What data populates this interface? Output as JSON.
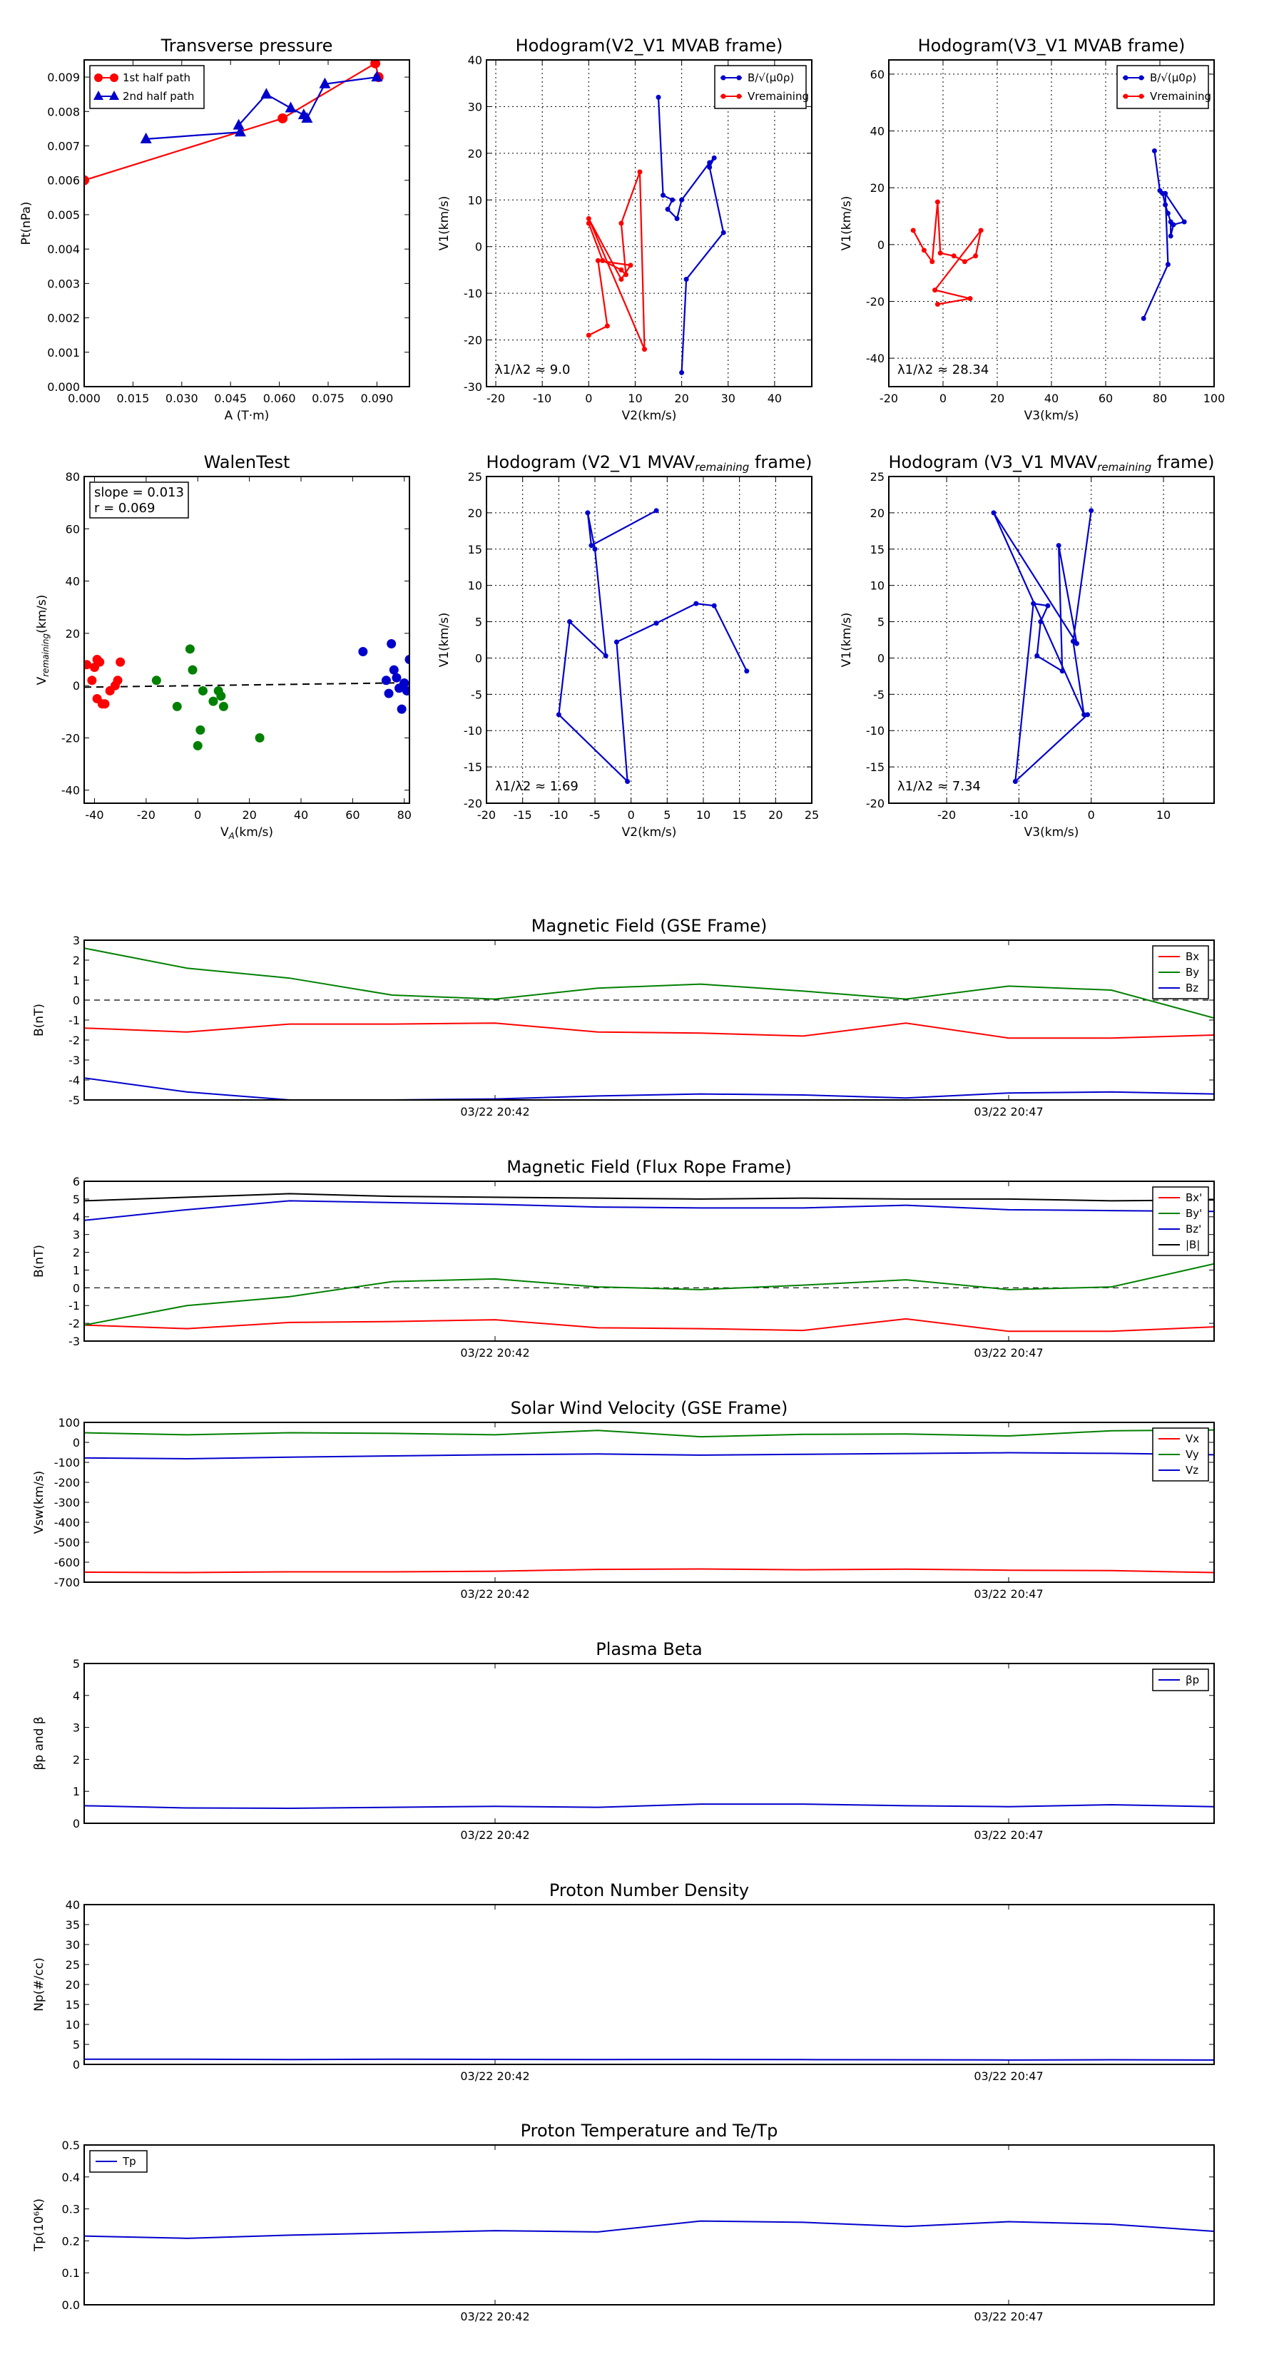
{
  "chart_data": [
    {
      "id": "tp",
      "type": "scatter",
      "title": "Transverse pressure",
      "xlabel": "A (T·m)",
      "ylabel": "Pt(nPa)",
      "xlim": [
        0,
        0.1
      ],
      "ylim": [
        0,
        0.0095
      ],
      "xticks": [
        0,
        0.015,
        0.03,
        0.045,
        0.06,
        0.075,
        0.09
      ],
      "xtick_labels": [
        "0.000",
        "0.015",
        "0.030",
        "0.045",
        "0.060",
        "0.075",
        "0.090"
      ],
      "yticks": [
        0,
        0.001,
        0.002,
        0.003,
        0.004,
        0.005,
        0.006,
        0.007,
        0.008,
        0.009
      ],
      "ytick_labels": [
        "0.000",
        "0.001",
        "0.002",
        "0.003",
        "0.004",
        "0.005",
        "0.006",
        "0.007",
        "0.008",
        "0.009"
      ],
      "grid": false,
      "legend_loc": "upper-left",
      "series": [
        {
          "name": "1st half path",
          "color": "#ff0000",
          "marker": "circle",
          "x": [
            0.0,
            0.061,
            0.0895,
            0.0905
          ],
          "y": [
            0.006,
            0.0078,
            0.0094,
            0.009
          ]
        },
        {
          "name": "2nd half path",
          "color": "#0000cc",
          "marker": "triangle",
          "x": [
            0.019,
            0.048,
            0.0475,
            0.056,
            0.0635,
            0.0675,
            0.0685,
            0.074,
            0.09
          ],
          "y": [
            0.0072,
            0.0074,
            0.0076,
            0.0085,
            0.0081,
            0.0079,
            0.0078,
            0.0088,
            0.009
          ]
        }
      ]
    },
    {
      "id": "h1",
      "type": "line",
      "title": "Hodogram(V2_V1 MVAB frame)",
      "xlabel": "V2(km/s)",
      "ylabel": "V1(km/s)",
      "xlim": [
        -22,
        48
      ],
      "ylim": [
        -30,
        40
      ],
      "xticks": [
        -20,
        -10,
        0,
        10,
        20,
        30,
        40
      ],
      "yticks": [
        -30,
        -20,
        -10,
        0,
        10,
        20,
        30,
        40
      ],
      "grid": true,
      "legend_loc": "upper-right",
      "annotation": "λ1/λ2 ≈ 9.0",
      "series": [
        {
          "name": "B/√(μ0ρ)",
          "color": "#0000cc",
          "x": [
            15,
            16,
            18,
            17,
            19,
            20,
            26,
            27,
            26,
            29,
            21,
            20
          ],
          "y": [
            32,
            11,
            10,
            8,
            6,
            10,
            18,
            19,
            17,
            3,
            -7,
            -27
          ]
        },
        {
          "name": "Vremaining",
          "color": "#ff0000",
          "x": [
            0,
            3,
            7,
            8,
            7,
            11,
            12,
            0,
            7,
            9,
            2,
            4,
            0
          ],
          "y": [
            5,
            -3,
            -5,
            -6,
            5,
            16,
            -22,
            6,
            -7,
            -4,
            -3,
            -17,
            -19
          ]
        }
      ]
    },
    {
      "id": "h2",
      "type": "line",
      "title": "Hodogram(V3_V1 MVAB frame)",
      "xlabel": "V3(km/s)",
      "ylabel": "V1(km/s)",
      "xlim": [
        -20,
        100
      ],
      "ylim": [
        -50,
        65
      ],
      "xticks": [
        -20,
        0,
        20,
        40,
        60,
        80,
        100
      ],
      "yticks": [
        -40,
        -20,
        0,
        20,
        40,
        60
      ],
      "grid": true,
      "legend_loc": "upper-right",
      "annotation": "λ1/λ2 ≈ 28.34",
      "series": [
        {
          "name": "B/√(μ0ρ)",
          "color": "#0000cc",
          "x": [
            78,
            80,
            81,
            82,
            83,
            84,
            84,
            85,
            89,
            82,
            83,
            74
          ],
          "y": [
            33,
            19,
            18,
            14,
            11,
            8,
            3,
            7,
            8,
            18,
            -7,
            -26
          ]
        },
        {
          "name": "Vremaining",
          "color": "#ff0000",
          "x": [
            -11,
            -7,
            -4,
            -2,
            -1,
            4,
            8,
            12,
            14,
            -3,
            10,
            -2
          ],
          "y": [
            5,
            -2,
            -6,
            15,
            -3,
            -4,
            -6,
            -4,
            5,
            -16,
            -19,
            -21
          ]
        }
      ]
    },
    {
      "id": "walen",
      "type": "scatter",
      "title": "WalenTest",
      "xlabel": "V_A(km/s)",
      "ylabel": "V_remaining(km/s)",
      "xlim": [
        -44,
        82
      ],
      "ylim": [
        -45,
        80
      ],
      "xticks": [
        -40,
        -20,
        0,
        20,
        40,
        60,
        80
      ],
      "yticks": [
        -40,
        -20,
        0,
        20,
        40,
        60,
        80
      ],
      "grid": false,
      "annotation_lines": [
        "slope = 0.013",
        "r = 0.069"
      ],
      "fit_line": {
        "x": [
          -44,
          82
        ],
        "y": [
          -0.6,
          1.1
        ]
      },
      "series": [
        {
          "name": "",
          "color": "#ff0000",
          "x": [
            -43,
            -41,
            -40,
            -39,
            -39,
            -38,
            -37,
            -36,
            -34,
            -32,
            -31,
            -30
          ],
          "y": [
            8,
            2,
            7,
            10,
            -5,
            9,
            -7,
            -7,
            -2,
            0,
            2,
            9
          ]
        },
        {
          "name": "",
          "color": "#008000",
          "x": [
            -16,
            -8,
            -3,
            -2,
            0,
            1,
            2,
            6,
            8,
            9,
            10,
            24
          ],
          "y": [
            2,
            -8,
            14,
            6,
            -23,
            -17,
            -2,
            -6,
            -2,
            -4,
            -8,
            -20
          ]
        },
        {
          "name": "",
          "color": "#0000cc",
          "x": [
            64,
            73,
            74,
            75,
            76,
            77,
            78,
            79,
            80,
            81,
            82
          ],
          "y": [
            13,
            2,
            -3,
            16,
            6,
            3,
            -1,
            -9,
            1,
            -2,
            10
          ]
        }
      ]
    },
    {
      "id": "h3",
      "type": "line",
      "title": "Hodogram (V2_V1 MVAV_remaining frame)",
      "xlabel": "V2(km/s)",
      "ylabel": "V1(km/s)",
      "xlim": [
        -20,
        25
      ],
      "ylim": [
        -20,
        25
      ],
      "xticks": [
        -20,
        -15,
        -10,
        -5,
        0,
        5,
        10,
        15,
        20,
        25
      ],
      "yticks": [
        -20,
        -15,
        -10,
        -5,
        0,
        5,
        10,
        15,
        20,
        25
      ],
      "grid": true,
      "annotation": "λ1/λ2 ≈ 1.69",
      "series": [
        {
          "name": "",
          "color": "#0000cc",
          "x": [
            3.5,
            -5.5,
            -6,
            -5,
            -3.5,
            -8.5,
            -10,
            -0.5,
            -2,
            3.5,
            9,
            11.5,
            16
          ],
          "y": [
            20.3,
            15.5,
            20,
            15,
            0.3,
            5,
            -7.8,
            -17,
            2.2,
            4.8,
            7.5,
            7.2,
            -1.8
          ]
        }
      ]
    },
    {
      "id": "h4",
      "type": "line",
      "title": "Hodogram (V3_V1 MVAV_remaining frame)",
      "xlabel": "V3(km/s)",
      "ylabel": "V1(km/s)",
      "xlim": [
        -28,
        17
      ],
      "ylim": [
        -20,
        25
      ],
      "xticks": [
        -20,
        -10,
        0,
        10
      ],
      "yticks": [
        -20,
        -15,
        -10,
        -5,
        0,
        5,
        10,
        15,
        20,
        25
      ],
      "grid": true,
      "annotation": "λ1/λ2 ≈ 7.34",
      "series": [
        {
          "name": "",
          "color": "#0000cc",
          "x": [
            0,
            -2.5,
            -1,
            -13.5,
            -2,
            -4.5,
            -4,
            -7.5,
            -7,
            -6,
            -8,
            -10.5,
            -0.5
          ],
          "y": [
            20.3,
            2.3,
            -7.8,
            20,
            2,
            15.5,
            -1.8,
            0.3,
            5,
            7.2,
            7.5,
            -17,
            -7.8
          ]
        }
      ]
    },
    {
      "id": "bgse",
      "type": "line",
      "title": "Magnetic Field (GSE Frame)",
      "xlabel": "",
      "ylabel": "B(nT)",
      "xlim": [
        0,
        11
      ],
      "ylim": [
        -5,
        3
      ],
      "yticks": [
        -5,
        -4,
        -3,
        -2,
        -1,
        0,
        1,
        2,
        3
      ],
      "xticks": [
        4,
        9
      ],
      "xtick_labels": [
        "03/22 20:42",
        "03/22 20:47"
      ],
      "zero_line": true,
      "legend_loc": "upper-right",
      "x": [
        0,
        1,
        2,
        3,
        4,
        5,
        6,
        7,
        8,
        9,
        10,
        11
      ],
      "series": [
        {
          "name": "Bx",
          "color": "#ff0000",
          "values": [
            -1.4,
            -1.6,
            -1.2,
            -1.2,
            -1.15,
            -1.6,
            -1.65,
            -1.8,
            -1.15,
            -1.9,
            -1.9,
            -1.75
          ]
        },
        {
          "name": "By",
          "color": "#008000",
          "values": [
            2.6,
            1.6,
            1.1,
            0.25,
            0.05,
            0.6,
            0.8,
            0.45,
            0.05,
            0.7,
            0.5,
            -0.9
          ]
        },
        {
          "name": "Bz",
          "color": "#0000cc",
          "values": [
            -3.9,
            -4.6,
            -5.0,
            -5.0,
            -4.95,
            -4.8,
            -4.7,
            -4.75,
            -4.9,
            -4.65,
            -4.6,
            -4.7
          ]
        }
      ]
    },
    {
      "id": "bfr",
      "type": "line",
      "title": "Magnetic Field (Flux Rope Frame)",
      "xlabel": "",
      "ylabel": "B(nT)",
      "xlim": [
        0,
        11
      ],
      "ylim": [
        -3,
        6
      ],
      "yticks": [
        -3,
        -2,
        -1,
        0,
        1,
        2,
        3,
        4,
        5,
        6
      ],
      "xticks": [
        4,
        9
      ],
      "xtick_labels": [
        "03/22 20:42",
        "03/22 20:47"
      ],
      "zero_line": true,
      "legend_loc": "upper-right",
      "x": [
        0,
        1,
        2,
        3,
        4,
        5,
        6,
        7,
        8,
        9,
        10,
        11
      ],
      "series": [
        {
          "name": "Bx'",
          "color": "#ff0000",
          "values": [
            -2.1,
            -2.3,
            -1.95,
            -1.9,
            -1.8,
            -2.25,
            -2.3,
            -2.4,
            -1.75,
            -2.45,
            -2.45,
            -2.2
          ]
        },
        {
          "name": "By'",
          "color": "#008000",
          "values": [
            -2.1,
            -1.0,
            -0.5,
            0.35,
            0.5,
            0.05,
            -0.1,
            0.15,
            0.45,
            -0.1,
            0.05,
            1.35
          ]
        },
        {
          "name": "Bz'",
          "color": "#0000cc",
          "values": [
            3.8,
            4.4,
            4.9,
            4.8,
            4.7,
            4.55,
            4.5,
            4.5,
            4.65,
            4.4,
            4.35,
            4.3
          ]
        },
        {
          "name": "|B|",
          "color": "#000000",
          "values": [
            4.9,
            5.1,
            5.3,
            5.15,
            5.1,
            5.05,
            5.0,
            5.05,
            5.0,
            5.0,
            4.9,
            4.95
          ]
        }
      ]
    },
    {
      "id": "vsw",
      "type": "line",
      "title": "Solar Wind Velocity (GSE Frame)",
      "xlabel": "",
      "ylabel": "Vsw(km/s)",
      "xlim": [
        0,
        11
      ],
      "ylim": [
        -700,
        100
      ],
      "yticks": [
        -700,
        -600,
        -500,
        -400,
        -300,
        -200,
        -100,
        0,
        100
      ],
      "xticks": [
        4,
        9
      ],
      "xtick_labels": [
        "03/22 20:42",
        "03/22 20:47"
      ],
      "legend_loc": "upper-right",
      "x": [
        0,
        1,
        2,
        3,
        4,
        5,
        6,
        7,
        8,
        9,
        10,
        11
      ],
      "series": [
        {
          "name": "Vx",
          "color": "#ff0000",
          "values": [
            -650,
            -652,
            -648,
            -648,
            -645,
            -636,
            -634,
            -638,
            -635,
            -640,
            -642,
            -652
          ]
        },
        {
          "name": "Vy",
          "color": "#008000",
          "values": [
            48,
            38,
            48,
            45,
            38,
            60,
            28,
            40,
            42,
            32,
            58,
            62
          ]
        },
        {
          "name": "Vz",
          "color": "#0000cc",
          "values": [
            -78,
            -82,
            -74,
            -68,
            -62,
            -58,
            -64,
            -60,
            -56,
            -52,
            -55,
            -62
          ]
        }
      ]
    },
    {
      "id": "beta",
      "type": "line",
      "title": "Plasma Beta",
      "xlabel": "",
      "ylabel": "βp and β",
      "xlim": [
        0,
        11
      ],
      "ylim": [
        0,
        5
      ],
      "yticks": [
        0,
        1,
        2,
        3,
        4,
        5
      ],
      "xticks": [
        4,
        9
      ],
      "xtick_labels": [
        "03/22 20:42",
        "03/22 20:47"
      ],
      "legend_loc": "upper-right",
      "x": [
        0,
        1,
        2,
        3,
        4,
        5,
        6,
        7,
        8,
        9,
        10,
        11
      ],
      "series": [
        {
          "name": "βp",
          "color": "#0000cc",
          "values": [
            0.55,
            0.48,
            0.47,
            0.5,
            0.53,
            0.5,
            0.6,
            0.6,
            0.55,
            0.52,
            0.58,
            0.52
          ]
        }
      ]
    },
    {
      "id": "np",
      "type": "line",
      "title": "Proton Number Density",
      "xlabel": "",
      "ylabel": "Np(#/cc)",
      "xlim": [
        0,
        11
      ],
      "ylim": [
        0,
        40
      ],
      "yticks": [
        0,
        5,
        10,
        15,
        20,
        25,
        30,
        35,
        40
      ],
      "xticks": [
        4,
        9
      ],
      "xtick_labels": [
        "03/22 20:42",
        "03/22 20:47"
      ],
      "x": [
        0,
        1,
        2,
        3,
        4,
        5,
        6,
        7,
        8,
        9,
        10,
        11
      ],
      "series": [
        {
          "name": "",
          "color": "#0000cc",
          "values": [
            1.3,
            1.3,
            1.2,
            1.3,
            1.25,
            1.2,
            1.25,
            1.2,
            1.15,
            1.1,
            1.15,
            1.1
          ]
        }
      ]
    },
    {
      "id": "tp2",
      "type": "line",
      "title": "Proton Temperature and Te/Tp",
      "xlabel": "",
      "ylabel": "Tp(10⁶K)",
      "xlim": [
        0,
        11
      ],
      "ylim": [
        0,
        0.5
      ],
      "yticks": [
        0,
        0.1,
        0.2,
        0.3,
        0.4,
        0.5
      ],
      "ytick_labels": [
        "0.0",
        "0.1",
        "0.2",
        "0.3",
        "0.4",
        "0.5"
      ],
      "xticks": [
        4,
        9
      ],
      "xtick_labels": [
        "03/22 20:42",
        "03/22 20:47"
      ],
      "legend_loc": "upper-left",
      "x": [
        0,
        1,
        2,
        3,
        4,
        5,
        6,
        7,
        8,
        9,
        10,
        11
      ],
      "series": [
        {
          "name": "Tp",
          "color": "#0000cc",
          "values": [
            0.215,
            0.208,
            0.218,
            0.225,
            0.232,
            0.228,
            0.262,
            0.258,
            0.245,
            0.26,
            0.252,
            0.23
          ]
        }
      ]
    }
  ]
}
